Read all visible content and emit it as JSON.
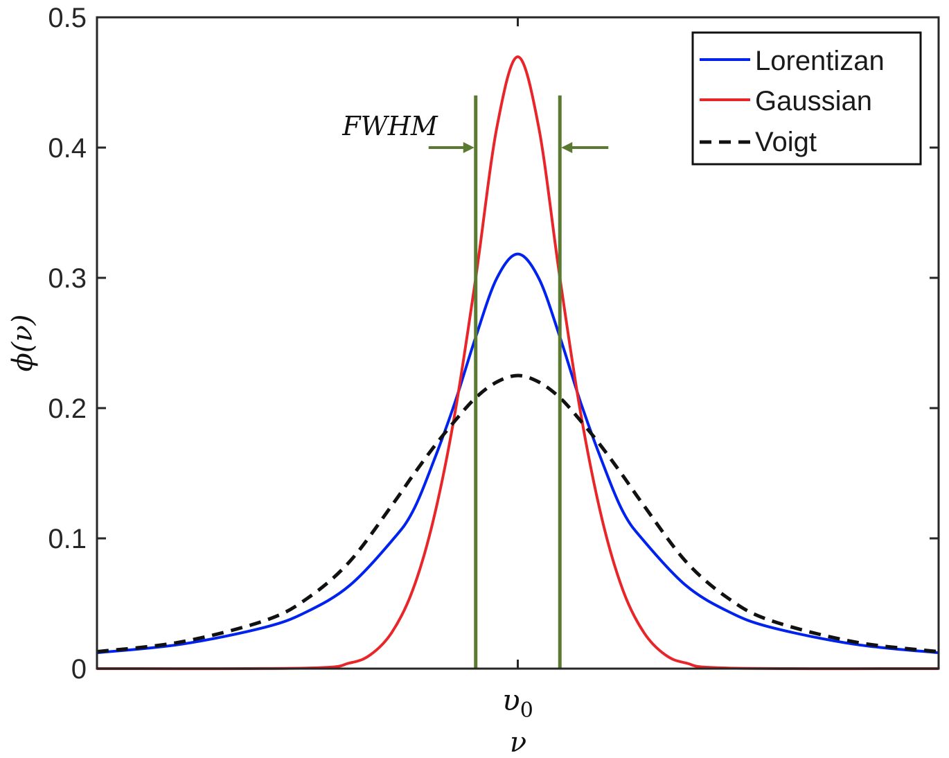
{
  "chart_data": {
    "type": "line",
    "title": "",
    "xlabel": "ν",
    "ylabel": "ϕ(ν)",
    "ylim": [
      0,
      0.5
    ],
    "xlim": [
      -5,
      5
    ],
    "yticks": [
      "0",
      "0.1",
      "0.2",
      "0.3",
      "0.4",
      "0.5"
    ],
    "xticks": [
      {
        "x": 0,
        "label": "υ",
        "sub": "0"
      }
    ],
    "legend_position": "top-right",
    "grid": false,
    "series": [
      {
        "name": "Lorentizan",
        "color": "#0022ee",
        "style": "solid",
        "x": [
          -5,
          -4,
          -3,
          -2.5,
          -2,
          -1.5,
          -1.25,
          -1,
          -0.75,
          -0.5,
          -0.25,
          0,
          0.25,
          0.5,
          0.75,
          1,
          1.25,
          1.5,
          2,
          2.5,
          3,
          4,
          5
        ],
        "y": [
          0.0122,
          0.0187,
          0.0318,
          0.0439,
          0.0637,
          0.0979,
          0.1204,
          0.1592,
          0.2037,
          0.2546,
          0.2996,
          0.3183,
          0.2996,
          0.2546,
          0.2037,
          0.1592,
          0.1204,
          0.0979,
          0.0637,
          0.0439,
          0.0318,
          0.0187,
          0.0122
        ]
      },
      {
        "name": "Gaussian",
        "color": "#e8262a",
        "style": "solid",
        "x": [
          -5,
          -2.5,
          -2,
          -1.75,
          -1.5,
          -1.25,
          -1,
          -0.75,
          -0.5,
          -0.25,
          0,
          0.25,
          0.5,
          0.75,
          1,
          1.25,
          1.5,
          1.75,
          2,
          2.5,
          5
        ],
        "y": [
          0,
          0.0004,
          0.0043,
          0.0107,
          0.0275,
          0.06,
          0.115,
          0.195,
          0.3,
          0.415,
          0.4697,
          0.415,
          0.3,
          0.195,
          0.115,
          0.06,
          0.0275,
          0.0107,
          0.0043,
          0.0004,
          0
        ]
      },
      {
        "name": "Voigt",
        "color": "#111111",
        "style": "dashed",
        "x": [
          -5,
          -4,
          -3,
          -2.5,
          -2,
          -1.5,
          -1.25,
          -1,
          -0.75,
          -0.5,
          -0.25,
          0,
          0.25,
          0.5,
          0.75,
          1,
          1.25,
          1.5,
          2,
          2.5,
          3,
          4,
          5
        ],
        "y": [
          0.013,
          0.0205,
          0.037,
          0.054,
          0.082,
          0.125,
          0.148,
          0.17,
          0.19,
          0.208,
          0.22,
          0.225,
          0.22,
          0.208,
          0.19,
          0.17,
          0.148,
          0.125,
          0.082,
          0.054,
          0.037,
          0.0205,
          0.013
        ]
      }
    ],
    "annotations": {
      "fwhm_label": "FWHM",
      "fwhm_color": "#5a7a32",
      "fwhm_lines_x": [
        -0.5,
        0.5
      ],
      "fwhm_line_top_y": 0.44,
      "arrow_y": 0.4
    }
  }
}
